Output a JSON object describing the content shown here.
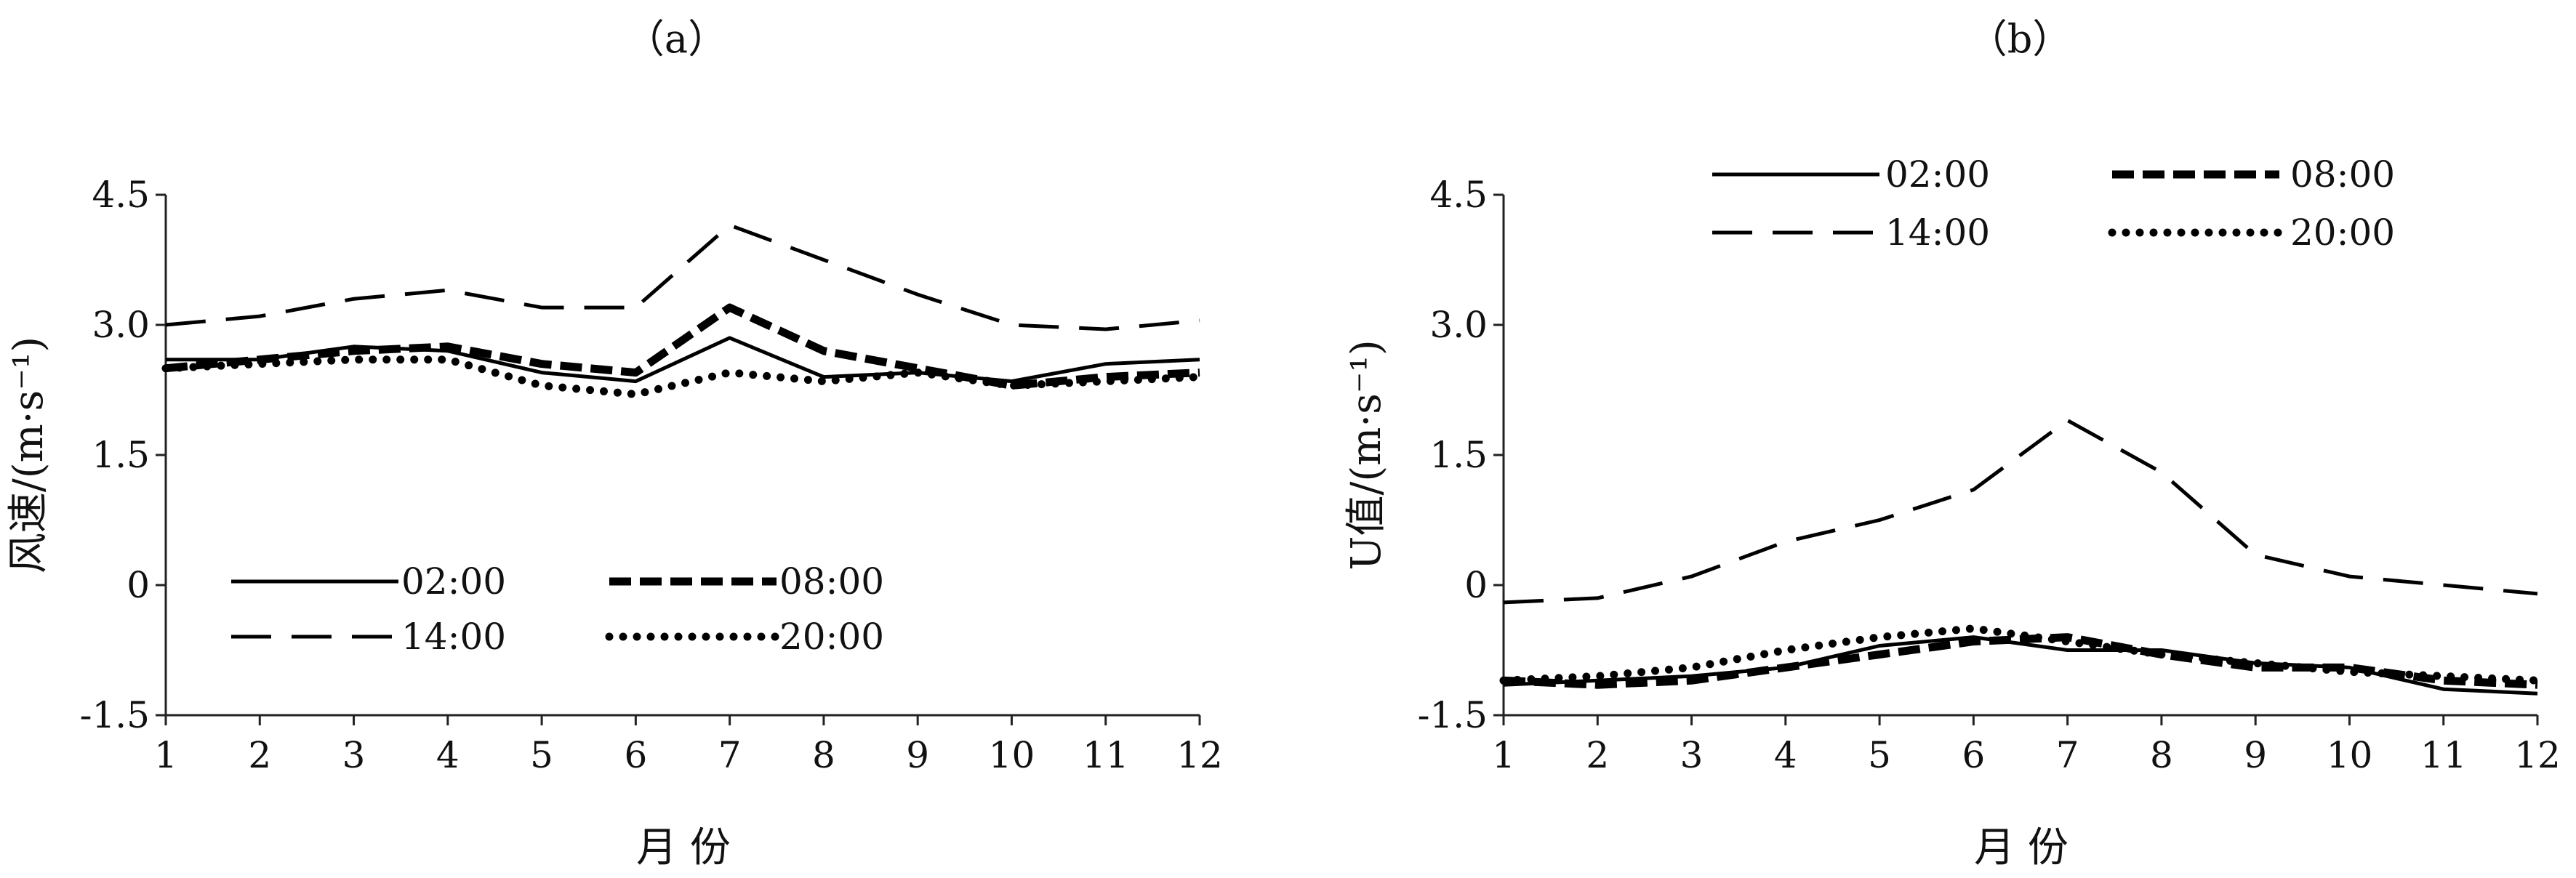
{
  "chart_data": [
    {
      "type": "line",
      "panel_label": "（a）",
      "ylabel": "风速/(m·s⁻¹)",
      "xlabel": "月  份",
      "ylim": [
        -1.5,
        4.5
      ],
      "yticks": [
        "4.5",
        "3.0",
        "1.5",
        "0",
        "-1.5"
      ],
      "ytick_values": [
        4.5,
        3.0,
        1.5,
        0,
        -1.5
      ],
      "categories": [
        "1",
        "2",
        "3",
        "4",
        "5",
        "6",
        "7",
        "8",
        "9",
        "10",
        "11",
        "12"
      ],
      "grid": false,
      "legend_position": "bottom-center",
      "series": [
        {
          "name": "02:00",
          "style": "solid",
          "values": [
            2.6,
            2.6,
            2.75,
            2.7,
            2.45,
            2.35,
            2.85,
            2.4,
            2.45,
            2.35,
            2.55,
            2.6
          ]
        },
        {
          "name": "08:00",
          "style": "bold-dash",
          "values": [
            2.5,
            2.6,
            2.7,
            2.75,
            2.55,
            2.45,
            3.2,
            2.7,
            2.5,
            2.3,
            2.4,
            2.45
          ]
        },
        {
          "name": "14:00",
          "style": "long-dash",
          "values": [
            3.0,
            3.1,
            3.3,
            3.4,
            3.2,
            3.2,
            4.15,
            3.75,
            3.35,
            3.0,
            2.95,
            3.05
          ]
        },
        {
          "name": "20:00",
          "style": "dotted",
          "values": [
            2.5,
            2.55,
            2.6,
            2.6,
            2.3,
            2.2,
            2.45,
            2.35,
            2.45,
            2.3,
            2.35,
            2.4
          ]
        }
      ]
    },
    {
      "type": "line",
      "panel_label": "（b）",
      "ylabel": "U值/(m·s⁻¹)",
      "xlabel": "月  份",
      "ylim": [
        -1.5,
        4.5
      ],
      "yticks": [
        "4.5",
        "3.0",
        "1.5",
        "0",
        "-1.5"
      ],
      "ytick_values": [
        4.5,
        3.0,
        1.5,
        0,
        -1.5
      ],
      "categories": [
        "1",
        "2",
        "3",
        "4",
        "5",
        "6",
        "7",
        "8",
        "9",
        "10",
        "11",
        "12"
      ],
      "grid": false,
      "legend_position": "top-center",
      "series": [
        {
          "name": "02:00",
          "style": "solid",
          "values": [
            -1.15,
            -1.1,
            -1.05,
            -0.95,
            -0.7,
            -0.6,
            -0.75,
            -0.75,
            -0.9,
            -0.95,
            -1.2,
            -1.25
          ]
        },
        {
          "name": "08:00",
          "style": "bold-dash",
          "values": [
            -1.1,
            -1.15,
            -1.1,
            -0.95,
            -0.8,
            -0.65,
            -0.6,
            -0.8,
            -0.95,
            -0.95,
            -1.1,
            -1.15
          ]
        },
        {
          "name": "14:00",
          "style": "long-dash",
          "values": [
            -0.2,
            -0.15,
            0.1,
            0.5,
            0.75,
            1.1,
            1.9,
            1.3,
            0.35,
            0.1,
            0.0,
            -0.1
          ]
        },
        {
          "name": "20:00",
          "style": "dotted",
          "values": [
            -1.1,
            -1.05,
            -0.95,
            -0.75,
            -0.6,
            -0.5,
            -0.65,
            -0.8,
            -0.9,
            -1.0,
            -1.05,
            -1.1
          ]
        }
      ]
    }
  ]
}
